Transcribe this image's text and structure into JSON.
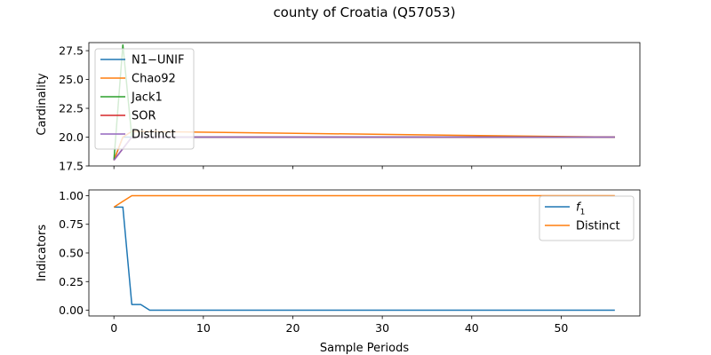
{
  "figure": {
    "title": "county of Croatia (Q57053)"
  },
  "chart_data": [
    {
      "type": "line",
      "ylabel": "Cardinality",
      "xlabel": "",
      "xlim": [
        -2.8,
        58.8
      ],
      "ylim": [
        17.5,
        28.2
      ],
      "yticks": [
        17.5,
        20.0,
        22.5,
        25.0,
        27.5
      ],
      "ytick_labels": [
        "17.5",
        "20.0",
        "22.5",
        "25.0",
        "27.5"
      ],
      "xticks": [
        0,
        10,
        20,
        30,
        40,
        50
      ],
      "show_xtick_labels": false,
      "grid": false,
      "legend": "upper left",
      "series": [
        {
          "name": "N1−UNIF",
          "color": "#1f77b4",
          "x": [
            0,
            1,
            2,
            56
          ],
          "y": [
            18,
            20,
            20,
            20
          ]
        },
        {
          "name": "Chao92",
          "color": "#ff7f0e",
          "x": [
            0,
            1,
            2,
            56
          ],
          "y": [
            18,
            20,
            20.5,
            20
          ]
        },
        {
          "name": "Jack1",
          "color": "#2ca02c",
          "x": [
            0,
            1,
            2,
            56
          ],
          "y": [
            18,
            28,
            20,
            20
          ]
        },
        {
          "name": "SOR",
          "color": "#d62728",
          "x": [
            0,
            1,
            2,
            56
          ],
          "y": [
            18,
            19,
            20,
            20
          ]
        },
        {
          "name": "Distinct",
          "color": "#9467bd",
          "x": [
            0,
            1,
            2,
            56
          ],
          "y": [
            18,
            19,
            20,
            20
          ]
        }
      ]
    },
    {
      "type": "line",
      "ylabel": "Indicators",
      "xlabel": "Sample Periods",
      "xlim": [
        -2.8,
        58.8
      ],
      "ylim": [
        -0.05,
        1.05
      ],
      "yticks": [
        0.0,
        0.25,
        0.5,
        0.75,
        1.0
      ],
      "ytick_labels": [
        "0.00",
        "0.25",
        "0.50",
        "0.75",
        "1.00"
      ],
      "xticks": [
        0,
        10,
        20,
        30,
        40,
        50
      ],
      "xtick_labels": [
        "0",
        "10",
        "20",
        "30",
        "40",
        "50"
      ],
      "show_xtick_labels": true,
      "grid": false,
      "legend": "upper right",
      "series": [
        {
          "name": "f1",
          "color": "#1f77b4",
          "x": [
            0,
            1,
            2,
            3,
            4,
            56
          ],
          "y": [
            0.9,
            0.9,
            0.05,
            0.05,
            0.0,
            0.0
          ]
        },
        {
          "name": "Distinct",
          "color": "#ff7f0e",
          "x": [
            0,
            1,
            2,
            56
          ],
          "y": [
            0.9,
            0.95,
            1.0,
            1.0
          ]
        }
      ]
    }
  ]
}
